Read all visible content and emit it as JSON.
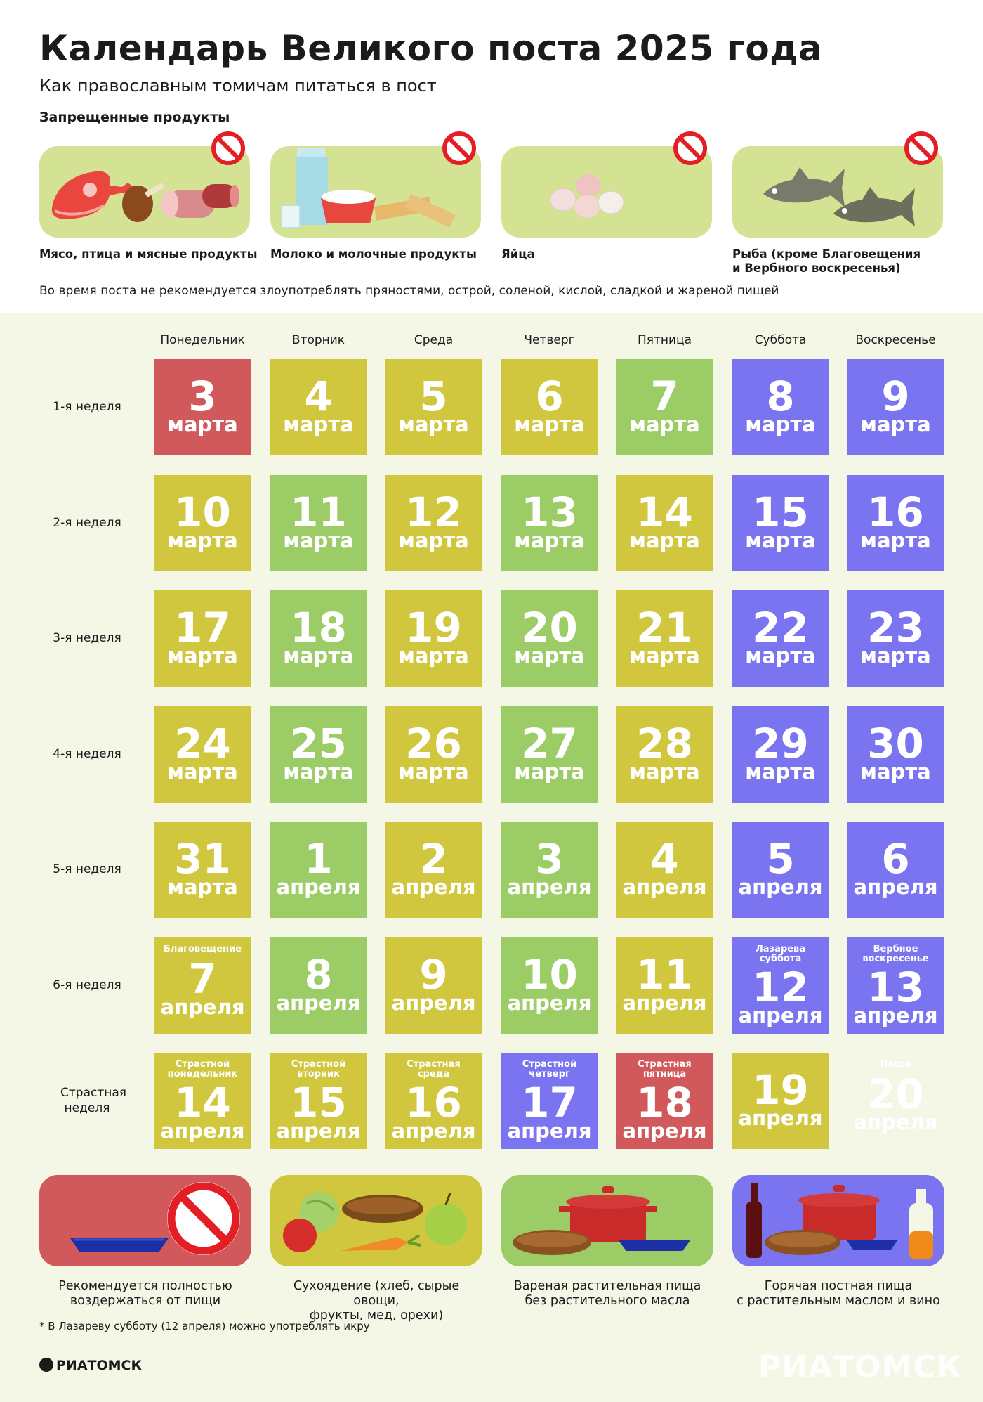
{
  "header": {
    "title": "Календарь Великого поста 2025 года",
    "subtitle": "Как православным томичам питаться в пост",
    "forbidden_heading": "Запрещенные продукты"
  },
  "forbidden": [
    {
      "icon": "meat-poultry-icon",
      "label": "Мясо, птица и мясные продукты"
    },
    {
      "icon": "dairy-icon",
      "label": "Молоко и молочные продукты"
    },
    {
      "icon": "eggs-icon",
      "label": "Яйца"
    },
    {
      "icon": "fish-icon",
      "label_line1": "Рыба (кроме Благовещения",
      "label_line2": "и Вербного воскресенья)"
    }
  ],
  "note": "Во время поста не рекомендуется злоупотреблять пряностями, острой, соленой, кислой, сладкой и жареной пищей",
  "days": [
    "Понедельник",
    "Вторник",
    "Среда",
    "Четверг",
    "Пятница",
    "Суббота",
    "Воскресенье"
  ],
  "colors": {
    "red": "#d1595c",
    "yellow": "#d1c73e",
    "green": "#9ccc65",
    "purple": "#7b74f0",
    "easter": "#e8393e",
    "card_bg": "#d3e393"
  },
  "weeks": [
    {
      "label": "1-я неделя",
      "cells": [
        {
          "n": "3",
          "m": "марта",
          "c": "red"
        },
        {
          "n": "4",
          "m": "марта",
          "c": "yellow"
        },
        {
          "n": "5",
          "m": "марта",
          "c": "yellow"
        },
        {
          "n": "6",
          "m": "марта",
          "c": "yellow"
        },
        {
          "n": "7",
          "m": "марта",
          "c": "green"
        },
        {
          "n": "8",
          "m": "марта",
          "c": "purple"
        },
        {
          "n": "9",
          "m": "марта",
          "c": "purple"
        }
      ]
    },
    {
      "label": "2-я неделя",
      "cells": [
        {
          "n": "10",
          "m": "марта",
          "c": "yellow"
        },
        {
          "n": "11",
          "m": "марта",
          "c": "green"
        },
        {
          "n": "12",
          "m": "марта",
          "c": "yellow"
        },
        {
          "n": "13",
          "m": "марта",
          "c": "green"
        },
        {
          "n": "14",
          "m": "марта",
          "c": "yellow"
        },
        {
          "n": "15",
          "m": "марта",
          "c": "purple"
        },
        {
          "n": "16",
          "m": "марта",
          "c": "purple"
        }
      ]
    },
    {
      "label": "3-я неделя",
      "cells": [
        {
          "n": "17",
          "m": "марта",
          "c": "yellow"
        },
        {
          "n": "18",
          "m": "марта",
          "c": "green"
        },
        {
          "n": "19",
          "m": "марта",
          "c": "yellow"
        },
        {
          "n": "20",
          "m": "марта",
          "c": "green"
        },
        {
          "n": "21",
          "m": "марта",
          "c": "yellow"
        },
        {
          "n": "22",
          "m": "марта",
          "c": "purple"
        },
        {
          "n": "23",
          "m": "марта",
          "c": "purple"
        }
      ]
    },
    {
      "label": "4-я неделя",
      "cells": [
        {
          "n": "24",
          "m": "марта",
          "c": "yellow"
        },
        {
          "n": "25",
          "m": "марта",
          "c": "green"
        },
        {
          "n": "26",
          "m": "марта",
          "c": "yellow"
        },
        {
          "n": "27",
          "m": "марта",
          "c": "green"
        },
        {
          "n": "28",
          "m": "марта",
          "c": "yellow"
        },
        {
          "n": "29",
          "m": "марта",
          "c": "purple"
        },
        {
          "n": "30",
          "m": "марта",
          "c": "purple"
        }
      ]
    },
    {
      "label": "5-я неделя",
      "cells": [
        {
          "n": "31",
          "m": "марта",
          "c": "yellow"
        },
        {
          "n": "1",
          "m": "апреля",
          "c": "green"
        },
        {
          "n": "2",
          "m": "апреля",
          "c": "yellow"
        },
        {
          "n": "3",
          "m": "апреля",
          "c": "green"
        },
        {
          "n": "4",
          "m": "апреля",
          "c": "yellow"
        },
        {
          "n": "5",
          "m": "апреля",
          "c": "purple"
        },
        {
          "n": "6",
          "m": "апреля",
          "c": "purple"
        }
      ]
    },
    {
      "label": "6-я неделя",
      "cells": [
        {
          "n": "7",
          "m": "апреля",
          "c": "yellow",
          "s1": "Благовещение"
        },
        {
          "n": "8",
          "m": "апреля",
          "c": "green"
        },
        {
          "n": "9",
          "m": "апреля",
          "c": "yellow"
        },
        {
          "n": "10",
          "m": "апреля",
          "c": "green"
        },
        {
          "n": "11",
          "m": "апреля",
          "c": "yellow"
        },
        {
          "n": "12",
          "m": "апреля",
          "c": "purple",
          "s1": "Лазарева",
          "s2": "суббота"
        },
        {
          "n": "13",
          "m": "апреля",
          "c": "purple",
          "s1": "Вербное",
          "s2": "воскресенье"
        }
      ]
    },
    {
      "label": "Страстная неделя",
      "cells": [
        {
          "n": "14",
          "m": "апреля",
          "c": "yellow",
          "s1": "Страстной",
          "s2": "понедельник"
        },
        {
          "n": "15",
          "m": "апреля",
          "c": "yellow",
          "s1": "Страстной",
          "s2": "вторник"
        },
        {
          "n": "16",
          "m": "апреля",
          "c": "yellow",
          "s1": "Страстная",
          "s2": "среда"
        },
        {
          "n": "17",
          "m": "апреля",
          "c": "purple",
          "s1": "Страстной",
          "s2": "четверг"
        },
        {
          "n": "18",
          "m": "апреля",
          "c": "red",
          "s1": "Страстная",
          "s2": "пятница"
        },
        {
          "n": "19",
          "m": "апреля",
          "c": "yellow"
        },
        {
          "n": "20",
          "m": "апреля",
          "c": "easter",
          "s1": "Пасха"
        }
      ]
    }
  ],
  "legend": [
    {
      "icon": "empty-plate-icon",
      "line1": "Рекомендуется полностью",
      "line2": "воздержаться от пищи"
    },
    {
      "icon": "raw-food-icon",
      "line1": "Сухоядение (хлеб, сырые овощи,",
      "line2": "фрукты, мед, орехи)"
    },
    {
      "icon": "boiled-food-icon",
      "line1": "Вареная растительная пища",
      "line2": "без растительного масла"
    },
    {
      "icon": "hot-food-oil-wine-icon",
      "line1": "Горячая постная пища",
      "line2": "с растительным маслом и вино"
    }
  ],
  "footnote": "* В Лазареву субботу (12 апреля) можно употреблять икру",
  "brand": "РИАТОМСК",
  "watermark": "РИАТОМСК"
}
